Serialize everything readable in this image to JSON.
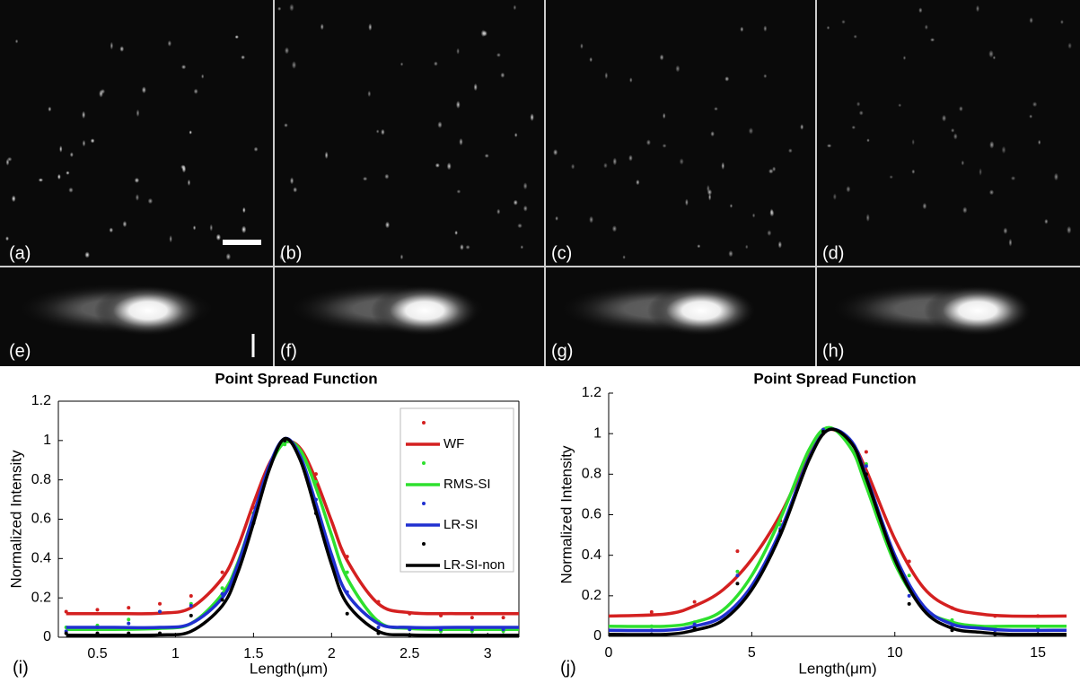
{
  "image_panels": [
    "(a)",
    "(b)",
    "(c)",
    "(d)",
    "(e)",
    "(f)",
    "(g)",
    "(h)"
  ],
  "chart_data": [
    {
      "type": "line",
      "panel_label": "(i)",
      "title": "Point Spread Function",
      "x_label": "Length(μm)",
      "y_label": "Normalized Intensity",
      "xlim": [
        0.25,
        3.2
      ],
      "xticks": [
        0.5,
        1,
        1.5,
        2,
        2.5,
        3
      ],
      "ylim": [
        0,
        1.2
      ],
      "yticks": [
        0,
        0.2,
        0.4,
        0.6,
        0.8,
        1,
        1.2
      ],
      "frame": true,
      "legend": "upper right",
      "series": [
        {
          "name": "WF",
          "color": "#d42020",
          "x": [
            0.3,
            0.6,
            0.9,
            1.1,
            1.3,
            1.4,
            1.5,
            1.6,
            1.7,
            1.8,
            1.9,
            2.0,
            2.1,
            2.3,
            2.5,
            2.8,
            3.2
          ],
          "values": [
            0.12,
            0.12,
            0.122,
            0.15,
            0.3,
            0.46,
            0.68,
            0.88,
            0.99,
            0.96,
            0.8,
            0.59,
            0.39,
            0.17,
            0.125,
            0.12,
            0.12
          ],
          "points_x": [
            0.3,
            0.5,
            0.7,
            0.9,
            1.1,
            1.3,
            1.5,
            1.7,
            1.9,
            2.1,
            2.3,
            2.5,
            2.7,
            2.9,
            3.1
          ],
          "points_y": [
            0.13,
            0.14,
            0.15,
            0.17,
            0.21,
            0.33,
            0.66,
            1.0,
            0.83,
            0.41,
            0.18,
            0.12,
            0.11,
            0.1,
            0.1
          ]
        },
        {
          "name": "RMS-SI",
          "color": "#2ee02e",
          "x": [
            0.3,
            0.6,
            0.9,
            1.1,
            1.3,
            1.4,
            1.5,
            1.6,
            1.7,
            1.8,
            1.9,
            2.0,
            2.1,
            2.3,
            2.5,
            2.8,
            3.2
          ],
          "values": [
            0.04,
            0.04,
            0.045,
            0.07,
            0.22,
            0.38,
            0.62,
            0.86,
            0.99,
            0.95,
            0.76,
            0.52,
            0.3,
            0.08,
            0.045,
            0.04,
            0.04
          ],
          "points_x": [
            0.3,
            0.5,
            0.7,
            0.9,
            1.1,
            1.3,
            1.5,
            1.7,
            1.9,
            2.1,
            2.3,
            2.5,
            2.7,
            2.9,
            3.1
          ],
          "points_y": [
            0.05,
            0.06,
            0.09,
            0.13,
            0.17,
            0.25,
            0.63,
            0.98,
            0.79,
            0.33,
            0.08,
            0.04,
            0.03,
            0.03,
            0.03
          ]
        },
        {
          "name": "LR-SI",
          "color": "#2030d0",
          "x": [
            0.3,
            0.6,
            0.9,
            1.1,
            1.3,
            1.4,
            1.5,
            1.6,
            1.7,
            1.8,
            1.9,
            2.0,
            2.1,
            2.3,
            2.5,
            2.8,
            3.2
          ],
          "values": [
            0.05,
            0.05,
            0.05,
            0.07,
            0.2,
            0.37,
            0.62,
            0.87,
            1.01,
            0.92,
            0.68,
            0.42,
            0.22,
            0.07,
            0.05,
            0.05,
            0.05
          ],
          "points_x": [
            0.3,
            0.5,
            0.7,
            0.9,
            1.1,
            1.3,
            1.5,
            1.7,
            1.9,
            2.1,
            2.3,
            2.5,
            2.7,
            2.9,
            3.1
          ],
          "points_y": [
            0.03,
            0.05,
            0.07,
            0.13,
            0.16,
            0.22,
            0.6,
            1.0,
            0.7,
            0.23,
            0.05,
            0.04,
            0.04,
            0.04,
            0.04
          ]
        },
        {
          "name": "LR-SI-non",
          "color": "#000000",
          "x": [
            0.3,
            0.6,
            0.9,
            1.1,
            1.3,
            1.4,
            1.5,
            1.6,
            1.7,
            1.8,
            1.9,
            2.0,
            2.1,
            2.3,
            2.5,
            2.8,
            3.2
          ],
          "values": [
            0.01,
            0.01,
            0.012,
            0.03,
            0.16,
            0.33,
            0.58,
            0.85,
            1.01,
            0.9,
            0.64,
            0.37,
            0.17,
            0.03,
            0.012,
            0.01,
            0.01
          ],
          "points_x": [
            0.3,
            0.5,
            0.7,
            0.9,
            1.1,
            1.3,
            1.5,
            1.7,
            1.9,
            2.1,
            2.3,
            2.5,
            2.7,
            2.9,
            3.1
          ],
          "points_y": [
            0.02,
            0.02,
            0.02,
            0.02,
            0.11,
            0.19,
            0.58,
            1.0,
            0.63,
            0.12,
            0.02,
            0.01,
            0.01,
            0.01,
            0.01
          ]
        }
      ]
    },
    {
      "type": "line",
      "panel_label": "(j)",
      "title": "Point Spread Function",
      "x_label": "Length(μm)",
      "y_label": "Normalized Intensity",
      "xlim": [
        0,
        16
      ],
      "xticks": [
        0,
        5,
        10,
        15
      ],
      "ylim": [
        0,
        1.2
      ],
      "yticks": [
        0,
        0.2,
        0.4,
        0.6,
        0.8,
        1,
        1.2
      ],
      "frame": false,
      "series": [
        {
          "color": "#d42020",
          "x": [
            0,
            2,
            3,
            4,
            5,
            6,
            7,
            7.7,
            8.5,
            9,
            10,
            11,
            12,
            13,
            14,
            16
          ],
          "values": [
            0.1,
            0.11,
            0.15,
            0.23,
            0.38,
            0.6,
            0.89,
            1.02,
            0.95,
            0.82,
            0.48,
            0.24,
            0.14,
            0.11,
            0.1,
            0.1
          ],
          "points_x": [
            1.5,
            3,
            4.5,
            6,
            7.5,
            9,
            10.5,
            12,
            13.5,
            15
          ],
          "points_y": [
            0.12,
            0.17,
            0.42,
            0.57,
            1.0,
            0.91,
            0.37,
            0.14,
            0.1,
            0.1
          ]
        },
        {
          "color": "#2ee02e",
          "x": [
            0,
            2,
            3,
            4,
            5,
            6,
            7,
            7.7,
            8.5,
            9,
            10,
            11,
            12,
            13,
            14,
            16
          ],
          "values": [
            0.05,
            0.05,
            0.07,
            0.13,
            0.3,
            0.58,
            0.92,
            1.03,
            0.92,
            0.74,
            0.36,
            0.14,
            0.07,
            0.05,
            0.05,
            0.05
          ],
          "points_x": [
            1.5,
            3,
            4.5,
            6,
            7.5,
            9,
            10.5,
            12,
            13.5,
            15
          ],
          "points_y": [
            0.05,
            0.07,
            0.32,
            0.55,
            1.02,
            0.85,
            0.3,
            0.08,
            0.04,
            0.04
          ]
        },
        {
          "color": "#2030d0",
          "x": [
            0,
            2,
            3,
            4,
            5,
            6,
            7,
            7.7,
            8.5,
            9,
            10,
            11,
            12,
            13,
            14,
            16
          ],
          "values": [
            0.03,
            0.03,
            0.05,
            0.1,
            0.25,
            0.52,
            0.88,
            1.02,
            0.96,
            0.79,
            0.4,
            0.15,
            0.06,
            0.04,
            0.03,
            0.03
          ],
          "points_x": [
            1.5,
            3,
            4.5,
            6,
            7.5,
            9,
            10.5,
            12,
            13.5,
            15
          ],
          "points_y": [
            0.03,
            0.06,
            0.3,
            0.53,
            1.02,
            0.84,
            0.2,
            0.05,
            0.03,
            0.03
          ]
        },
        {
          "color": "#000000",
          "x": [
            0,
            2,
            3,
            4,
            5,
            6,
            7,
            7.7,
            8.5,
            9,
            10,
            11,
            12,
            13,
            14,
            16
          ],
          "values": [
            0.01,
            0.01,
            0.03,
            0.08,
            0.23,
            0.5,
            0.87,
            1.02,
            0.95,
            0.78,
            0.38,
            0.13,
            0.04,
            0.02,
            0.01,
            0.01
          ],
          "points_x": [
            1.5,
            3,
            4.5,
            6,
            7.5,
            9,
            10.5,
            12,
            13.5,
            15
          ],
          "points_y": [
            0.01,
            0.04,
            0.26,
            0.52,
            1.01,
            0.8,
            0.16,
            0.03,
            0.01,
            0.01
          ]
        }
      ]
    }
  ]
}
